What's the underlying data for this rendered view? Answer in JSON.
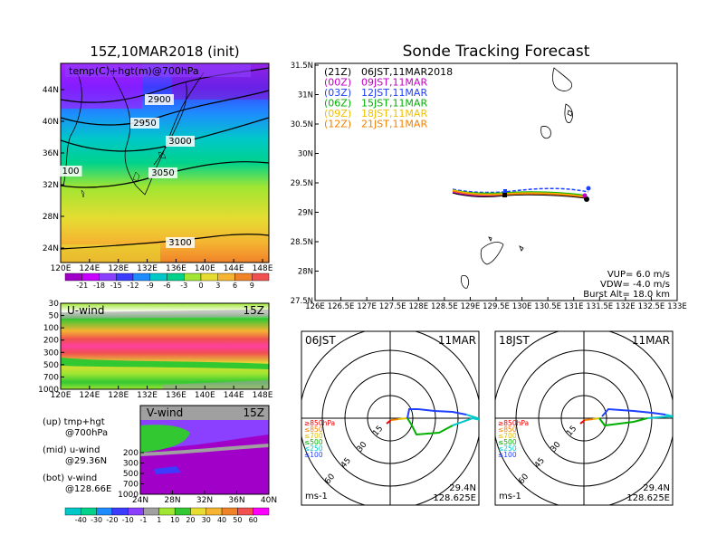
{
  "map": {
    "title": "15Z,10MAR2018 (init)",
    "subtitle": "temp(C)+hgt(m)@700hPa",
    "y_ticks": [
      "44N",
      "40N",
      "36N",
      "32N",
      "28N",
      "24N"
    ],
    "x_ticks": [
      "120E",
      "124E",
      "128E",
      "132E",
      "136E",
      "140E",
      "144E",
      "148E"
    ],
    "contour_labels": [
      "2900",
      "2950",
      "3000",
      "3050",
      "100",
      "3100"
    ]
  },
  "temp_colorbar": {
    "labels": [
      "-21",
      "-18",
      "-15",
      "-12",
      "-9",
      "-6",
      "-3",
      "0",
      "3",
      "6",
      "9"
    ],
    "colors": [
      "#a000c8",
      "#c800ff",
      "#8c40ff",
      "#3c3cff",
      "#1e8cff",
      "#00c8c8",
      "#00d28c",
      "#a0e632",
      "#e6dc32",
      "#f5b432",
      "#f08228",
      "#f05050"
    ]
  },
  "uwind": {
    "label": "U-wind",
    "time": "15Z",
    "y_ticks": [
      "30",
      "50",
      "100",
      "200",
      "300",
      "500",
      "700",
      "1000"
    ],
    "x_ticks": [
      "120E",
      "124E",
      "128E",
      "132E",
      "136E",
      "140E",
      "144E",
      "148E"
    ]
  },
  "vwind": {
    "label": "V-wind",
    "time": "15Z",
    "y_ticks": [
      "200",
      "300",
      "500",
      "700",
      "1000"
    ],
    "x_ticks": [
      "24N",
      "28N",
      "32N",
      "36N",
      "40N"
    ]
  },
  "legend_text": {
    "up_1": "(up) tmp+hgt",
    "up_2": "@700hPa",
    "mid_1": "(mid) u-wind",
    "mid_2": "@29.36N",
    "bot_1": "(bot) v-wind",
    "bot_2": "@128.66E"
  },
  "wind_colorbar": {
    "labels": [
      "-40",
      "-30",
      "-20",
      "-10",
      "-1",
      "1",
      "10",
      "20",
      "30",
      "40",
      "50",
      "60"
    ],
    "colors": [
      "#00c8c8",
      "#00d28c",
      "#1e8cff",
      "#3c3cff",
      "#8c40ff",
      "#a0a0a0",
      "#a0e632",
      "#32c832",
      "#e6dc32",
      "#f5b432",
      "#f08228",
      "#f05050",
      "#ff00ff"
    ]
  },
  "track": {
    "title": "Sonde Tracking Forecast",
    "y_ticks": [
      "31.5N",
      "31N",
      "30.5N",
      "30N",
      "29.5N",
      "29N",
      "28.5N",
      "28N",
      "27.5N"
    ],
    "x_ticks": [
      "126E",
      "126.5E",
      "127E",
      "127.5E",
      "128E",
      "128.5E",
      "129E",
      "129.5E",
      "130E",
      "130.5E",
      "131E",
      "131.5E",
      "132E",
      "132.5E",
      "133E"
    ],
    "legend": [
      {
        "code": "(21Z)",
        "text": "06JST,11MAR2018",
        "color": "#000000"
      },
      {
        "code": "(00Z)",
        "text": "09JST,11MAR",
        "color": "#c000c0"
      },
      {
        "code": "(03Z)",
        "text": "12JST,11MAR",
        "color": "#2040ff"
      },
      {
        "code": "(06Z)",
        "text": "15JST,11MAR",
        "color": "#00b000"
      },
      {
        "code": "(09Z)",
        "text": "18JST,11MAR",
        "color": "#f0c000"
      },
      {
        "code": "(12Z)",
        "text": "21JST,11MAR",
        "color": "#f08000"
      }
    ],
    "info": {
      "vup": "VUP=  6.0  m/s",
      "vdw": "VDW=  -4.0  m/s",
      "burst": "Burst Alt=  18.0  km"
    }
  },
  "polar_left": {
    "time": "06JST",
    "date": "11MAR",
    "ring_labels": [
      "15",
      "30",
      "45",
      "60"
    ],
    "levels": [
      "≥850hPa",
      "≤850",
      "≤700",
      "≤500",
      "≤250",
      "≤100"
    ],
    "level_colors": [
      "#f00000",
      "#f08000",
      "#e0c000",
      "#00b000",
      "#00c8c8",
      "#2040ff"
    ],
    "unit": "ms-1",
    "lat": "29.4N",
    "lon": "128.625E"
  },
  "polar_right": {
    "time": "18JST",
    "date": "11MAR",
    "ring_labels": [
      "15",
      "30",
      "45",
      "60"
    ],
    "levels": [
      "≥850hPa",
      "≤850",
      "≤700",
      "≤500",
      "≤250",
      "≤100"
    ],
    "level_colors": [
      "#f00000",
      "#f08000",
      "#e0c000",
      "#00b000",
      "#00c8c8",
      "#2040ff"
    ],
    "unit": "ms-1",
    "lat": "29.4N",
    "lon": "128.625E"
  }
}
